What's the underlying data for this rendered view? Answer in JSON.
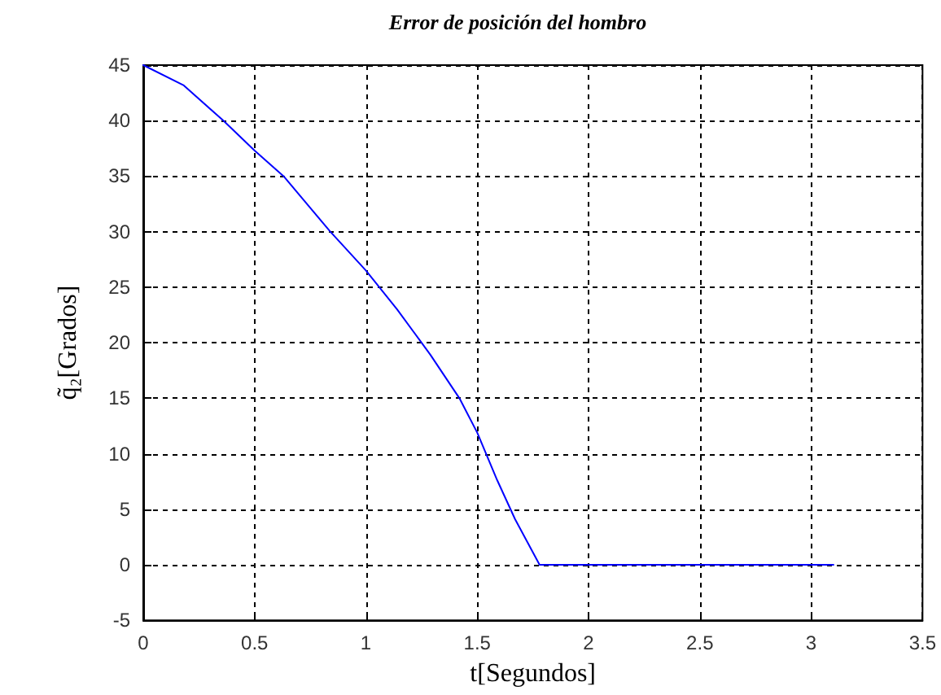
{
  "chart_data": {
    "type": "line",
    "title": "Error de posición del hombro",
    "xlabel": "t[Segundos]",
    "ylabel": "q̃₂[Grados]",
    "x": [
      0,
      0.18,
      0.36,
      0.5,
      0.63,
      0.84,
      1,
      1.14,
      1.25,
      1.29,
      1.42,
      1.5,
      1.59,
      1.67,
      1.78,
      2,
      2.5,
      3.1
    ],
    "series": [
      {
        "color": "#0000ff",
        "values": [
          45,
          43.2,
          40,
          37.3,
          35,
          30,
          26.5,
          23,
          20,
          18.9,
          15,
          11.9,
          7.6,
          4.1,
          0,
          0,
          0,
          0
        ]
      }
    ],
    "xlim": [
      0,
      3.5
    ],
    "xticks": [
      0,
      0.5,
      1,
      1.5,
      2,
      2.5,
      3,
      3.5
    ],
    "ylim": [
      -5,
      45
    ],
    "yticks": [
      -5,
      0,
      5,
      10,
      15,
      20,
      25,
      30,
      35,
      40,
      45
    ],
    "grid": true,
    "marker": "none",
    "line_style": "solid"
  }
}
